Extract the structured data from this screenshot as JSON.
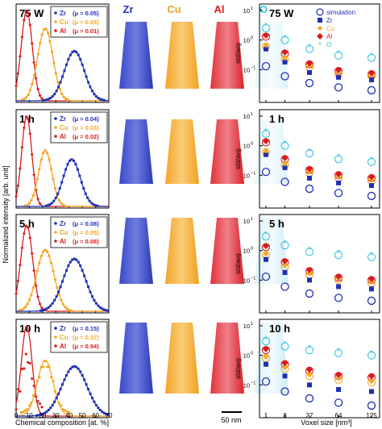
{
  "figure": {
    "left_ylabel": "Normalized intensity [arb. unit]",
    "left_xlabel": "Chemical composition [at. %]",
    "left_xticks": [
      "0",
      "10",
      "20",
      "30",
      "40",
      "50",
      "60",
      "70"
    ],
    "map_headers": [
      {
        "label": "Zr",
        "color": "#2233bb"
      },
      {
        "label": "Cu",
        "color": "#f0a020"
      },
      {
        "label": "Al",
        "color": "#dd1818"
      },
      {
        "label": "O",
        "color": "#33c8e0"
      }
    ],
    "scalebar_label": "50 nm",
    "right_ylabel": "std/avg",
    "right_xlabel": "Voxel size [nm³]",
    "right_xticks": [
      "1",
      "8",
      "27",
      "64",
      "125"
    ],
    "right_legend": [
      "simulation",
      "Zr",
      "Cu",
      "Al",
      "O"
    ],
    "colors": {
      "Zr": "#1f2fb4",
      "Cu": "#f5a623",
      "Al": "#d81b1b",
      "O": "#37c3df"
    }
  },
  "rows": [
    {
      "label": "75 W",
      "mu": [
        "(μ = 0.05)",
        "(μ = 0.03)",
        "(μ = 0.01)"
      ]
    },
    {
      "label": "1 h",
      "mu": [
        "(μ = 0.04)",
        "(μ = 0.03)",
        "(μ = 0.02)"
      ]
    },
    {
      "label": "5 h",
      "mu": [
        "(μ = 0.08)",
        "(μ = 0.05)",
        "(μ = 0.08)"
      ]
    },
    {
      "label": "10 h",
      "mu": [
        "(μ = 0.15)",
        "(μ = 0.37)",
        "(μ = 0.94)"
      ]
    }
  ],
  "chart_data": [
    {
      "type": "line",
      "title": "Composition distributions",
      "xlabel": "Chemical composition [at. %]",
      "ylabel": "Normalized intensity [arb. unit]",
      "xlim": [
        0,
        70
      ],
      "series_centers": {
        "Al": 8,
        "Cu": 22,
        "Zr": 44
      }
    },
    {
      "type": "scatter",
      "title": "std/avg vs voxel size",
      "xlabel": "Voxel size [nm³]",
      "ylabel": "std/avg",
      "x": [
        1,
        8,
        27,
        64,
        125
      ],
      "yscale": "log",
      "ylim": [
        0.01,
        10
      ],
      "rows": [
        {
          "label": "75 W",
          "simulation": [
            0.13,
            0.06,
            0.035,
            0.025,
            0.02
          ],
          "Zr": [
            0.5,
            0.18,
            0.08,
            0.055,
            0.045
          ],
          "Cu": [
            0.6,
            0.22,
            0.12,
            0.07,
            0.06
          ],
          "Al": [
            1.3,
            0.35,
            0.15,
            0.09,
            0.07
          ],
          "O": [
            2.5,
            1.0,
            0.5,
            0.3,
            0.25
          ]
        },
        {
          "label": "1 h",
          "simulation": [
            0.13,
            0.06,
            0.035,
            0.025,
            0.02
          ],
          "Zr": [
            0.5,
            0.18,
            0.08,
            0.055,
            0.045
          ],
          "Cu": [
            0.6,
            0.22,
            0.12,
            0.08,
            0.065
          ],
          "Al": [
            1.3,
            0.35,
            0.15,
            0.1,
            0.08
          ],
          "O": [
            2.5,
            1.0,
            0.55,
            0.35,
            0.28
          ]
        },
        {
          "label": "5 h",
          "simulation": [
            0.13,
            0.06,
            0.035,
            0.025,
            0.02
          ],
          "Zr": [
            0.5,
            0.18,
            0.1,
            0.06,
            0.05
          ],
          "Cu": [
            0.7,
            0.28,
            0.15,
            0.1,
            0.08
          ],
          "Al": [
            1.3,
            0.4,
            0.2,
            0.12,
            0.1
          ],
          "O": [
            3.0,
            1.5,
            0.9,
            0.7,
            0.6
          ]
        },
        {
          "label": "10 h",
          "simulation": [
            0.13,
            0.06,
            0.035,
            0.025,
            0.02
          ],
          "Zr": [
            0.5,
            0.2,
            0.1,
            0.07,
            0.06
          ],
          "Cu": [
            0.8,
            0.35,
            0.2,
            0.15,
            0.12
          ],
          "Al": [
            1.5,
            0.5,
            0.3,
            0.2,
            0.18
          ],
          "O": [
            3.0,
            2.0,
            1.5,
            1.2,
            1.0
          ]
        }
      ]
    }
  ]
}
